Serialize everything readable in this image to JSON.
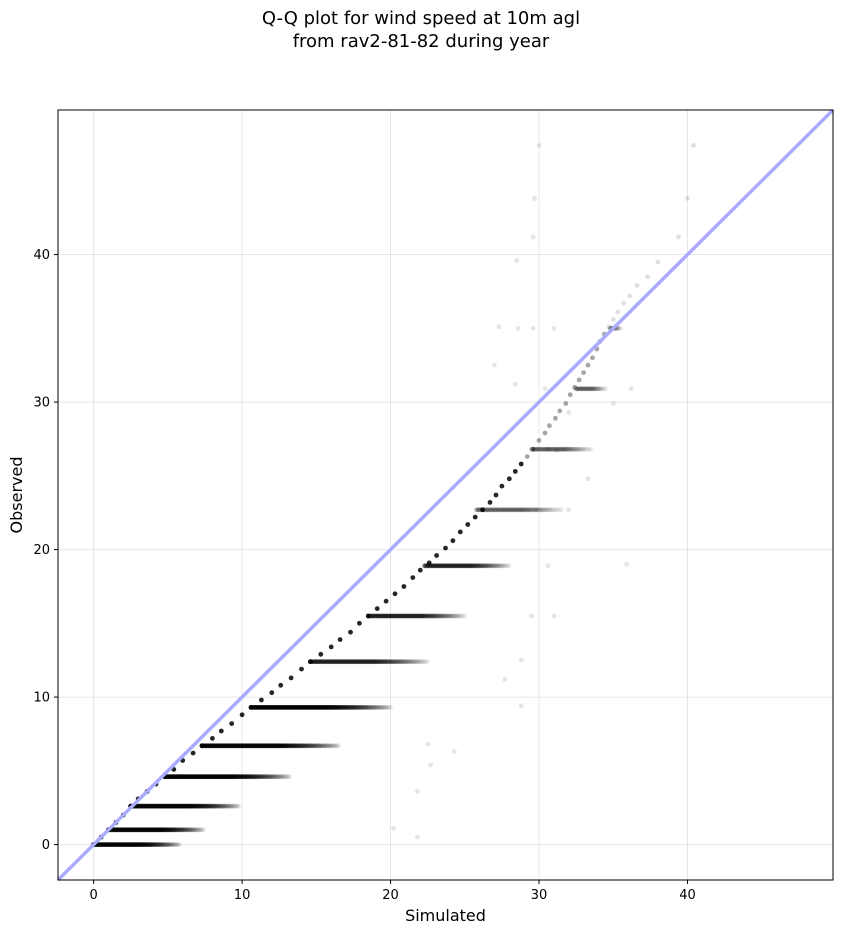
{
  "chart_data": {
    "type": "scatter",
    "title_lines": [
      "Q-Q plot for wind speed at 10m agl",
      "from rav2-81-82 during year"
    ],
    "xlabel": "Simulated",
    "ylabel": "Observed",
    "xlim": [
      -2.4,
      49.8
    ],
    "ylim": [
      -2.4,
      49.8
    ],
    "xticks": [
      0,
      10,
      20,
      30,
      40
    ],
    "yticks": [
      0,
      10,
      20,
      30,
      40
    ],
    "grid": true,
    "point_color": "#000000",
    "reference_line": {
      "label": "",
      "x": [
        -2.4,
        49.8
      ],
      "y": [
        -2.4,
        49.8
      ],
      "color": "#aaaaff"
    },
    "diagonal_edge": [
      [
        0,
        0
      ],
      [
        0.5,
        0.5
      ],
      [
        1,
        1
      ],
      [
        1.5,
        1.5
      ],
      [
        2,
        2
      ],
      [
        2.5,
        2.6
      ],
      [
        3,
        3.1
      ],
      [
        3.6,
        3.6
      ],
      [
        4.2,
        4.1
      ],
      [
        4.8,
        4.6
      ],
      [
        5.4,
        5.1
      ],
      [
        6,
        5.7
      ],
      [
        6.7,
        6.2
      ],
      [
        7.3,
        6.7
      ],
      [
        8,
        7.2
      ],
      [
        8.6,
        7.7
      ],
      [
        9.3,
        8.2
      ],
      [
        10,
        8.8
      ],
      [
        10.6,
        9.3
      ],
      [
        11.3,
        9.8
      ],
      [
        12,
        10.3
      ],
      [
        12.6,
        10.8
      ],
      [
        13.3,
        11.3
      ],
      [
        14,
        11.9
      ],
      [
        14.6,
        12.4
      ],
      [
        15.3,
        12.9
      ],
      [
        16,
        13.4
      ],
      [
        16.6,
        13.9
      ],
      [
        17.3,
        14.4
      ],
      [
        17.9,
        15
      ],
      [
        18.5,
        15.5
      ],
      [
        19.1,
        16
      ],
      [
        19.7,
        16.5
      ],
      [
        20.3,
        17
      ],
      [
        20.9,
        17.5
      ],
      [
        21.5,
        18.1
      ],
      [
        22,
        18.6
      ],
      [
        22.6,
        19.1
      ],
      [
        23.1,
        19.6
      ],
      [
        23.7,
        20.1
      ],
      [
        24.2,
        20.6
      ],
      [
        24.7,
        21.2
      ],
      [
        25.2,
        21.7
      ],
      [
        25.7,
        22.2
      ],
      [
        26.2,
        22.7
      ],
      [
        26.7,
        23.2
      ],
      [
        27.1,
        23.7
      ],
      [
        27.5,
        24.3
      ],
      [
        28,
        24.8
      ],
      [
        28.4,
        25.3
      ],
      [
        28.8,
        25.8
      ],
      [
        29.2,
        26.3
      ],
      [
        29.6,
        26.8
      ],
      [
        30,
        27.4
      ],
      [
        30.4,
        27.9
      ],
      [
        30.7,
        28.4
      ],
      [
        31.1,
        28.9
      ],
      [
        31.4,
        29.4
      ],
      [
        31.8,
        29.9
      ],
      [
        32.1,
        30.5
      ],
      [
        32.4,
        31
      ],
      [
        32.7,
        31.5
      ],
      [
        33,
        32
      ],
      [
        33.3,
        32.5
      ],
      [
        33.6,
        33
      ],
      [
        33.9,
        33.6
      ],
      [
        34.1,
        34.1
      ],
      [
        34.4,
        34.6
      ],
      [
        34.7,
        35.1
      ],
      [
        35,
        35.6
      ],
      [
        35.3,
        36.1
      ],
      [
        35.7,
        36.7
      ],
      [
        36.1,
        37.2
      ],
      [
        36.6,
        37.9
      ],
      [
        37.3,
        38.5
      ],
      [
        38,
        39.5
      ],
      [
        39.4,
        41.2
      ],
      [
        40,
        43.8
      ],
      [
        40.4,
        47.4
      ]
    ],
    "bands": [
      {
        "y": 0,
        "x_start": 0,
        "x_end": 5.8
      },
      {
        "y": 1,
        "x_start": 1,
        "x_end": 7.4
      },
      {
        "y": 2.6,
        "x_start": 2.5,
        "x_end": 9.8
      },
      {
        "y": 4.6,
        "x_start": 4.8,
        "x_end": 13.2
      },
      {
        "y": 6.7,
        "x_start": 7.3,
        "x_end": 16.5
      },
      {
        "y": 9.3,
        "x_start": 10.6,
        "x_end": 20
      },
      {
        "y": 12.4,
        "x_start": 14.6,
        "x_end": 22.5
      },
      {
        "y": 15.5,
        "x_start": 18.5,
        "x_end": 25
      },
      {
        "y": 18.9,
        "x_start": 22.3,
        "x_end": 28
      },
      {
        "y": 22.7,
        "x_start": 25.8,
        "x_end": 31.5
      },
      {
        "y": 26.8,
        "x_start": 29.5,
        "x_end": 33.5
      },
      {
        "y": 30.9,
        "x_start": 32.5,
        "x_end": 34.5
      },
      {
        "y": 35,
        "x_start": 34.8,
        "x_end": 35.5
      }
    ],
    "outliers": [
      [
        30,
        47.4
      ],
      [
        29.7,
        43.8
      ],
      [
        29.6,
        41.2
      ],
      [
        28.5,
        39.6
      ],
      [
        27.3,
        35.1
      ],
      [
        29.6,
        35
      ],
      [
        31,
        35
      ],
      [
        28.6,
        35
      ],
      [
        27,
        32.5
      ],
      [
        28.4,
        31.2
      ],
      [
        30.4,
        30.9
      ],
      [
        36.2,
        30.9
      ],
      [
        35,
        29.9
      ],
      [
        32,
        29.3
      ],
      [
        30.6,
        26.8
      ],
      [
        31.2,
        26.7
      ],
      [
        33.3,
        24.8
      ],
      [
        29.8,
        22.7
      ],
      [
        32,
        22.7
      ],
      [
        35.9,
        19
      ],
      [
        30.6,
        18.9
      ],
      [
        31,
        15.5
      ],
      [
        29.5,
        15.5
      ],
      [
        28.8,
        12.5
      ],
      [
        27.7,
        11.2
      ],
      [
        28.8,
        9.4
      ],
      [
        22.5,
        6.8
      ],
      [
        24.3,
        6.3
      ],
      [
        22.7,
        5.4
      ],
      [
        21.8,
        3.6
      ],
      [
        20.2,
        1.1
      ],
      [
        21.8,
        0.5
      ]
    ]
  }
}
